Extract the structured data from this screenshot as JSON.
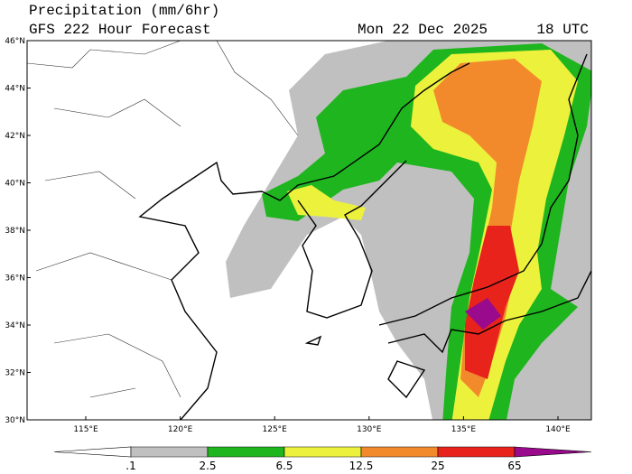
{
  "header": {
    "title": "Precipitation (mm/6hr)",
    "subtitle": "GFS 222 Hour Forecast",
    "date": "Mon 22 Dec 2025",
    "time": "18 UTC"
  },
  "map": {
    "lat_labels": [
      "46°N",
      "44°N",
      "42°N",
      "40°N",
      "38°N",
      "36°N",
      "34°N",
      "32°N",
      "30°N"
    ],
    "lon_labels": [
      "115°E",
      "120°E",
      "125°E",
      "130°E",
      "135°E",
      "140°E"
    ]
  },
  "colorbar": {
    "levels": [
      {
        "value": 0.1,
        "label": ".1"
      },
      2.5,
      6.5,
      12.5,
      25,
      65
    ],
    "colors": [
      "#ffffff",
      "#c0c0c0",
      "#1fb51f",
      "#ecf23c",
      "#f28a2c",
      "#e8231c",
      "#9a0a8c"
    ]
  }
}
